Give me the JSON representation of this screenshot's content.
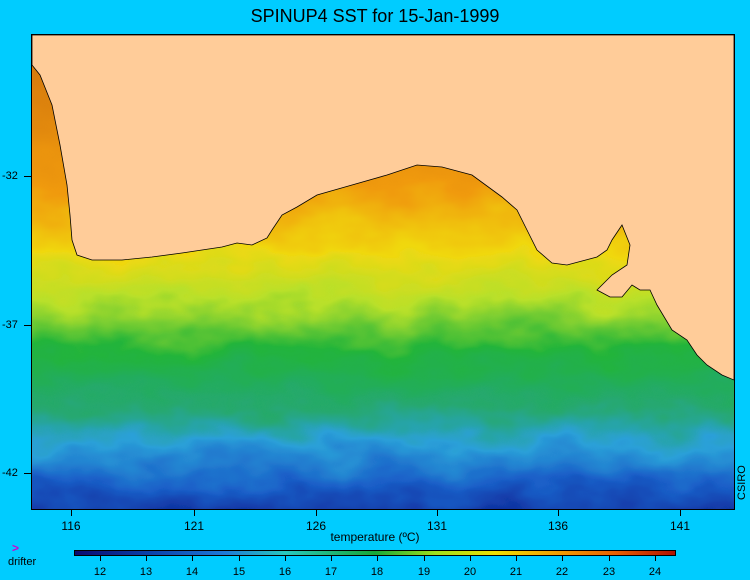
{
  "title": "SPINUP4 SST for 15-Jan-1999",
  "y_axis": {
    "ticks": [
      "-32",
      "-37",
      "-42"
    ]
  },
  "x_axis": {
    "ticks": [
      "116",
      "121",
      "126",
      "131",
      "136",
      "141"
    ]
  },
  "credit": "CSIRO",
  "colorbar": {
    "title": "temperature (ºC)",
    "ticks": [
      "12",
      "13",
      "14",
      "15",
      "16",
      "17",
      "18",
      "19",
      "20",
      "21",
      "22",
      "23",
      "24"
    ]
  },
  "legend": {
    "drifter_symbol": ">",
    "drifter_label": "drifter"
  },
  "colors": {
    "background": "#00ccff",
    "land": "#ffcc99",
    "warm": "#f0a000",
    "cold": "#0a1a8c"
  }
}
